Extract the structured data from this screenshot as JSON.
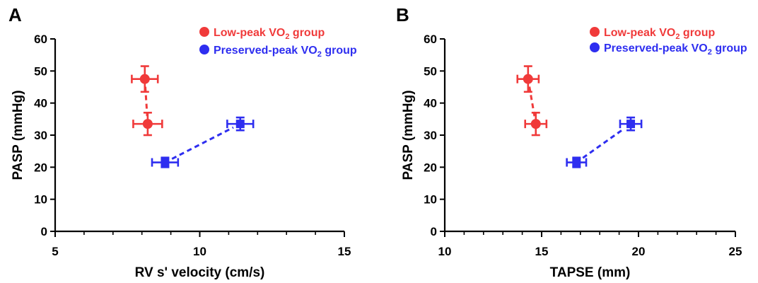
{
  "colors": {
    "low": "#f03a3a",
    "preserved": "#2e2ef0",
    "axis": "#000000"
  },
  "legend_labels": {
    "low": {
      "prefix": "Low-peak VO",
      "sub": "2",
      "suffix": " group"
    },
    "preserved": {
      "prefix": "Preserved-peak VO",
      "sub": "2",
      "suffix": " group"
    }
  },
  "chart_data": [
    {
      "type": "scatter",
      "panel_label": "A",
      "xlabel": "RV s' velocity (cm/s)",
      "ylabel": "PASP (mmHg)",
      "xlim": [
        5,
        15
      ],
      "ylim": [
        0,
        60
      ],
      "xticks": [
        5,
        10,
        15
      ],
      "yticks": [
        0,
        10,
        20,
        30,
        40,
        50,
        60
      ],
      "legend_position": "top-right",
      "series": [
        {
          "key": "low",
          "points": [
            {
              "x": 8.1,
              "y": 47.5,
              "xerr": 0.45,
              "yerr": 4.0
            },
            {
              "x": 8.2,
              "y": 33.5,
              "xerr": 0.5,
              "yerr": 3.5
            }
          ]
        },
        {
          "key": "preserved",
          "points": [
            {
              "x": 8.8,
              "y": 21.5,
              "xerr": 0.45,
              "yerr": 1.5
            },
            {
              "x": 11.4,
              "y": 33.5,
              "xerr": 0.45,
              "yerr": 2.0
            }
          ]
        }
      ]
    },
    {
      "type": "scatter",
      "panel_label": "B",
      "xlabel": "TAPSE (mm)",
      "ylabel": "PASP (mmHg)",
      "xlim": [
        10,
        25
      ],
      "ylim": [
        0,
        60
      ],
      "xticks": [
        10,
        15,
        20,
        25
      ],
      "yticks": [
        0,
        10,
        20,
        30,
        40,
        50,
        60
      ],
      "legend_position": "top-right",
      "series": [
        {
          "key": "low",
          "points": [
            {
              "x": 14.3,
              "y": 47.5,
              "xerr": 0.55,
              "yerr": 4.0
            },
            {
              "x": 14.7,
              "y": 33.5,
              "xerr": 0.55,
              "yerr": 3.5
            }
          ]
        },
        {
          "key": "preserved",
          "points": [
            {
              "x": 16.8,
              "y": 21.5,
              "xerr": 0.5,
              "yerr": 1.5
            },
            {
              "x": 19.6,
              "y": 33.5,
              "xerr": 0.55,
              "yerr": 2.0
            }
          ]
        }
      ]
    }
  ]
}
